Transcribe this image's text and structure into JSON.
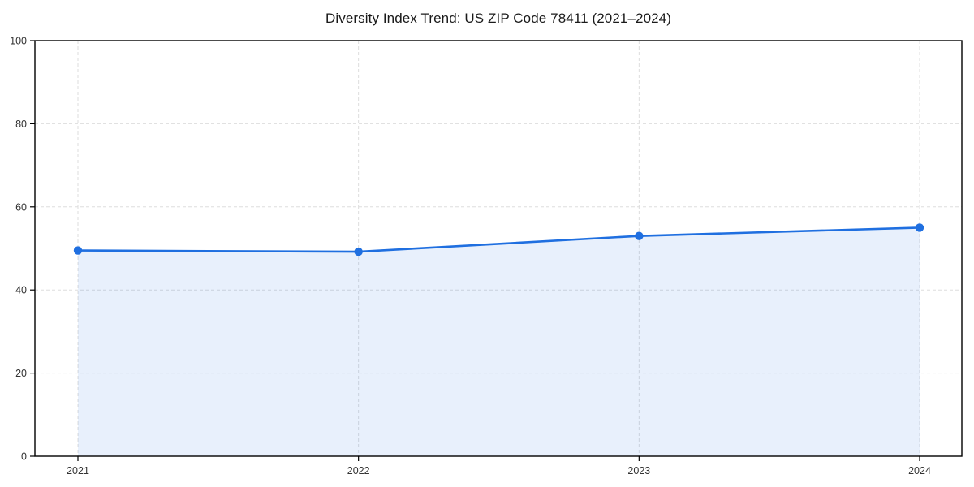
{
  "chart_data": {
    "type": "area",
    "title": "Diversity Index Trend: US ZIP Code 78411 (2021–2024)",
    "categories": [
      "2021",
      "2022",
      "2023",
      "2024"
    ],
    "series": [
      {
        "name": "Diversity Index",
        "values": [
          49.5,
          49.2,
          53.0,
          55.0
        ]
      }
    ],
    "xlabel": "",
    "ylabel": "",
    "ylim": [
      0,
      100
    ],
    "y_ticks": [
      0,
      20,
      40,
      60,
      80,
      100
    ],
    "grid": "dashed-both-axes",
    "legend": "none",
    "marker": "circle",
    "colors": {
      "line": "#1f6fe0",
      "marker": "#1f6fe0",
      "fill": "rgba(31,111,224,0.10)",
      "grid": "#dddddd",
      "frame": "#000000",
      "tick_text": "#333333",
      "title_text": "#1a1a1a"
    }
  }
}
